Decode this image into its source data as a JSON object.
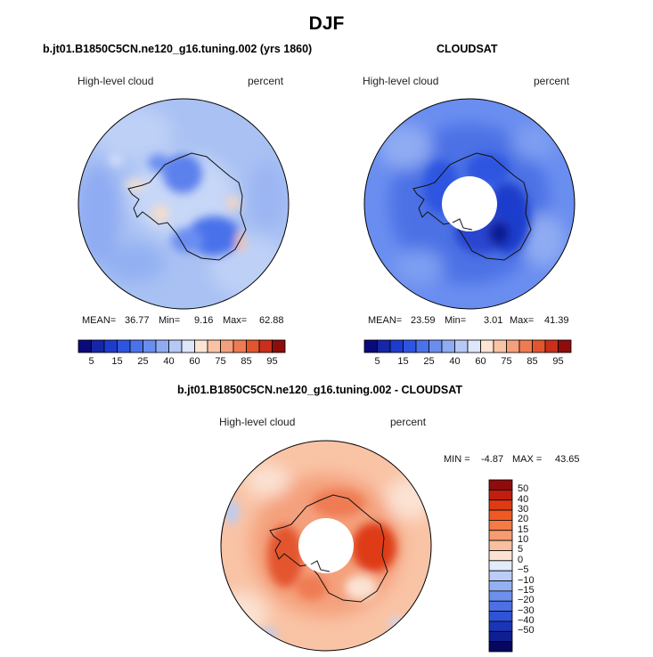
{
  "chart_data": {
    "type": "contour-map",
    "season_title": "DJF",
    "variable": "High-level cloud",
    "units": "percent",
    "panels": [
      {
        "name": "model",
        "title": "b.jt01.B1850C5CN.ne120_g16.tuning.002 (yrs 1860)",
        "left_label": "High-level cloud",
        "right_label": "percent",
        "mean_label": "MEAN=",
        "mean": "36.77",
        "min_label": "Min=",
        "min": "9.16",
        "max_label": "Max=",
        "max": "62.88",
        "colorbar_labels": [
          "5",
          "15",
          "25",
          "40",
          "60",
          "75",
          "85",
          "95"
        ]
      },
      {
        "name": "observation",
        "title": "CLOUDSAT",
        "left_label": "High-level cloud",
        "right_label": "percent",
        "mean_label": "MEAN=",
        "mean": "23.59",
        "min_label": "Min=",
        "min": "3.01",
        "max_label": "Max=",
        "max": "41.39",
        "colorbar_labels": [
          "5",
          "15",
          "25",
          "40",
          "60",
          "75",
          "85",
          "95"
        ]
      },
      {
        "name": "difference",
        "title": "b.jt01.B1850C5CN.ne120_g16.tuning.002 - CLOUDSAT",
        "left_label": "High-level cloud",
        "right_label": "percent",
        "min_label": "MIN =",
        "min": "-4.87",
        "max_label": "MAX =",
        "max": "43.65",
        "colorbar_labels": [
          "50",
          "40",
          "30",
          "20",
          "15",
          "10",
          "5",
          "0",
          "−5",
          "−10",
          "−15",
          "−20",
          "−30",
          "−40",
          "−50"
        ]
      }
    ]
  },
  "colors": {
    "abs_scale": [
      "#0a0a7a",
      "#1626a6",
      "#1e3ccc",
      "#2f55e0",
      "#4a72ea",
      "#6a8ef0",
      "#8fabf2",
      "#b6c9f5",
      "#dde6fb",
      "#fbe4d4",
      "#f9c3a5",
      "#f4a07c",
      "#ef7b53",
      "#e3552f",
      "#c92f1a",
      "#8e0c0c"
    ],
    "diff_scale": [
      "#8e0c0c",
      "#c01e10",
      "#de3a14",
      "#ef5a24",
      "#f47a46",
      "#f79c70",
      "#f9bfa0",
      "#fbe2d3",
      "#e1ebfa",
      "#b9cdf6",
      "#93b0f2",
      "#6d90ed",
      "#4b71e5",
      "#2f52d6",
      "#1b35b8",
      "#0e1f94",
      "#06075e"
    ]
  }
}
